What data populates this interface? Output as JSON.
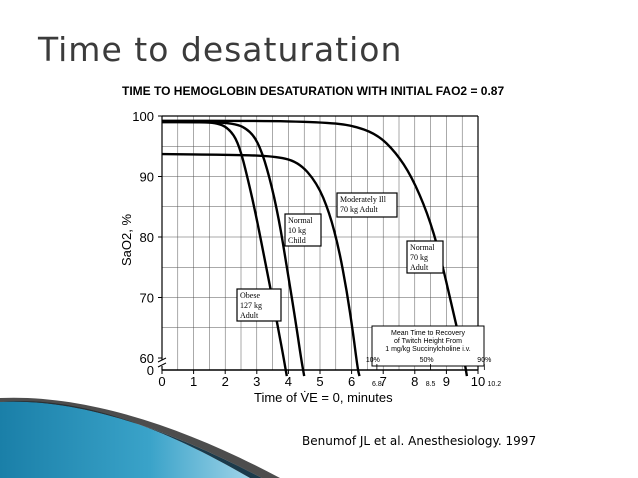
{
  "slide": {
    "title": "Time to desaturation",
    "citation": "Benumof JL et al. Anesthesiology. 1997"
  },
  "chart_data": {
    "type": "line",
    "title": "TIME TO HEMOGLOBIN DESATURATION WITH INITIAL FAO2 = 0.87",
    "xlabel": "Time of V̇E = 0, minutes",
    "ylabel": "SaO2, %",
    "xlim": [
      0,
      10.2
    ],
    "ylim": [
      60,
      100
    ],
    "x_ticks": [
      "0",
      "1",
      "2",
      "3",
      "4",
      "5",
      "6",
      "7",
      "8",
      "9",
      "10"
    ],
    "y_ticks": [
      "60",
      "70",
      "80",
      "90",
      "100"
    ],
    "y_zero_label": "0",
    "grid": true,
    "series": [
      {
        "name": "Obese 127 kg Adult",
        "label_lines": [
          "Obese",
          "127 kg",
          "Adult"
        ],
        "points": [
          [
            0,
            99.0
          ],
          [
            1,
            99.0
          ],
          [
            1.8,
            98.9
          ],
          [
            2.2,
            97.5
          ],
          [
            2.45,
            95
          ],
          [
            2.7,
            90
          ],
          [
            3.0,
            83
          ],
          [
            3.3,
            75
          ],
          [
            3.6,
            67
          ],
          [
            3.85,
            60
          ],
          [
            3.95,
            57
          ]
        ]
      },
      {
        "name": "Normal 10 kg Child",
        "label_lines": [
          "Normal",
          "10 kg",
          "Child"
        ],
        "points": [
          [
            0,
            99.0
          ],
          [
            1,
            99.0
          ],
          [
            2.3,
            98.9
          ],
          [
            2.8,
            97.5
          ],
          [
            3.1,
            95
          ],
          [
            3.4,
            90
          ],
          [
            3.7,
            83
          ],
          [
            3.95,
            75
          ],
          [
            4.2,
            67
          ],
          [
            4.4,
            60
          ],
          [
            4.5,
            57
          ]
        ]
      },
      {
        "name": "Moderately Ill 70 kg Adult",
        "label_lines": [
          "Moderately Ill",
          "70 kg Adult"
        ],
        "points": [
          [
            0,
            93.7
          ],
          [
            2,
            93.6
          ],
          [
            3.5,
            93.4
          ],
          [
            4.3,
            92.5
          ],
          [
            4.9,
            89
          ],
          [
            5.3,
            84
          ],
          [
            5.6,
            78
          ],
          [
            5.85,
            71
          ],
          [
            6.05,
            64
          ],
          [
            6.2,
            58
          ],
          [
            6.25,
            57
          ]
        ]
      },
      {
        "name": "Normal 70 kg Adult",
        "label_lines": [
          "Normal",
          "70 kg",
          "Adult"
        ],
        "points": [
          [
            0,
            99.2
          ],
          [
            3,
            99.2
          ],
          [
            5,
            99.0
          ],
          [
            6,
            98.5
          ],
          [
            6.8,
            97
          ],
          [
            7.4,
            94
          ],
          [
            7.9,
            90
          ],
          [
            8.4,
            84
          ],
          [
            8.8,
            77
          ],
          [
            9.2,
            68
          ],
          [
            9.55,
            60
          ],
          [
            9.65,
            57
          ]
        ]
      }
    ],
    "recovery_box": {
      "lines": [
        "Mean Time to Recovery",
        "of Twitch Height From",
        "1 mg/kg Succinylcholine i.v."
      ],
      "percent_labels": [
        {
          "label": "10%",
          "x": 6.8,
          "x_label": "6.8"
        },
        {
          "label": "50%",
          "x": 8.5,
          "x_label": "8.5"
        },
        {
          "label": "90%",
          "x": 10.2,
          "x_label": "10.2"
        }
      ]
    }
  }
}
